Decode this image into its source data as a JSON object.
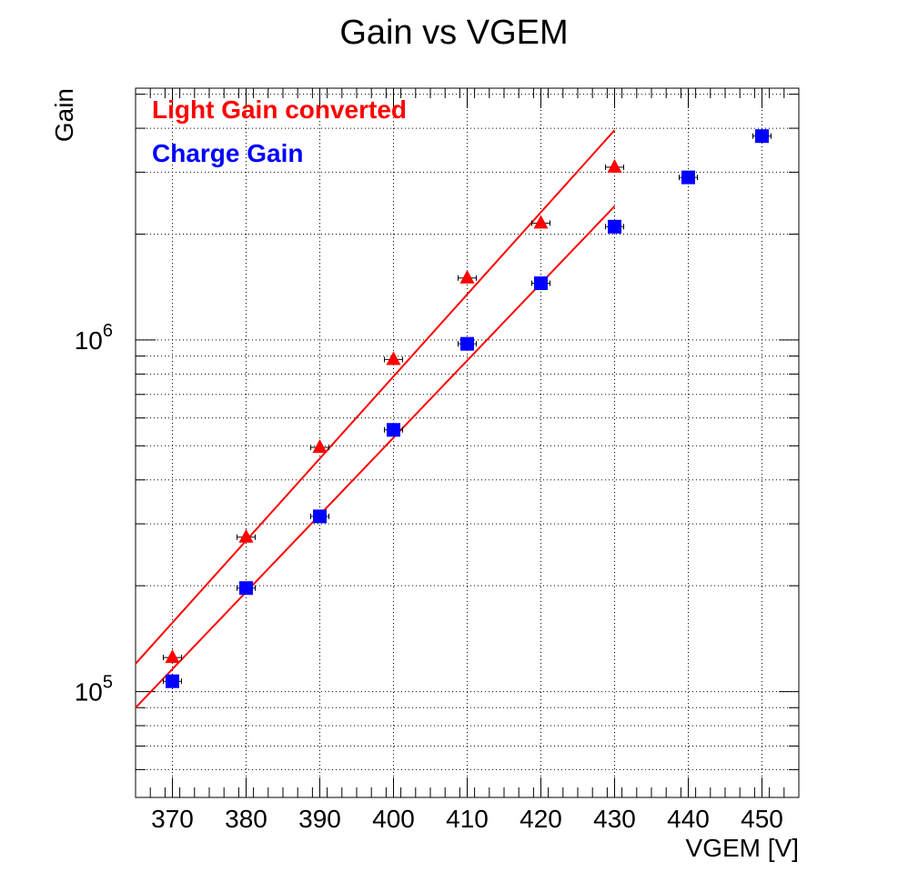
{
  "chart_data": {
    "type": "scatter",
    "title": "Gain vs VGEM",
    "xlabel": "VGEM [V]",
    "ylabel": "Gain",
    "xlim": [
      365,
      455
    ],
    "ylim": [
      50000,
      5200000
    ],
    "yscale": "log",
    "grid": true,
    "legend_placement": "top-left",
    "x_ticks": [
      "370",
      "380",
      "390",
      "400",
      "410",
      "420",
      "430",
      "440",
      "450"
    ],
    "y_ticks": [
      {
        "base": "10",
        "exp": "5",
        "value": 100000
      },
      {
        "base": "10",
        "exp": "6",
        "value": 1000000
      }
    ],
    "series": [
      {
        "name": "Light Gain converted",
        "marker": "triangle",
        "color": "#ff0000",
        "points": [
          {
            "x": 370,
            "y": 125000
          },
          {
            "x": 380,
            "y": 275000
          },
          {
            "x": 390,
            "y": 495000
          },
          {
            "x": 400,
            "y": 880000
          },
          {
            "x": 410,
            "y": 1500000
          },
          {
            "x": 420,
            "y": 2150000
          },
          {
            "x": 430,
            "y": 3100000
          }
        ],
        "fit": {
          "x": [
            365,
            430
          ],
          "y": [
            120000,
            3950000
          ],
          "color": "#ff0000"
        }
      },
      {
        "name": "Charge Gain",
        "marker": "square",
        "color": "#0000ff",
        "points": [
          {
            "x": 370,
            "y": 107000
          },
          {
            "x": 380,
            "y": 197000
          },
          {
            "x": 390,
            "y": 315000
          },
          {
            "x": 400,
            "y": 555000
          },
          {
            "x": 410,
            "y": 975000
          },
          {
            "x": 420,
            "y": 1450000
          },
          {
            "x": 430,
            "y": 2100000
          },
          {
            "x": 440,
            "y": 2900000
          },
          {
            "x": 450,
            "y": 3800000
          }
        ],
        "fit": {
          "x": [
            365,
            430
          ],
          "y": [
            90000,
            2400000
          ],
          "color": "#ff0000"
        }
      }
    ]
  }
}
